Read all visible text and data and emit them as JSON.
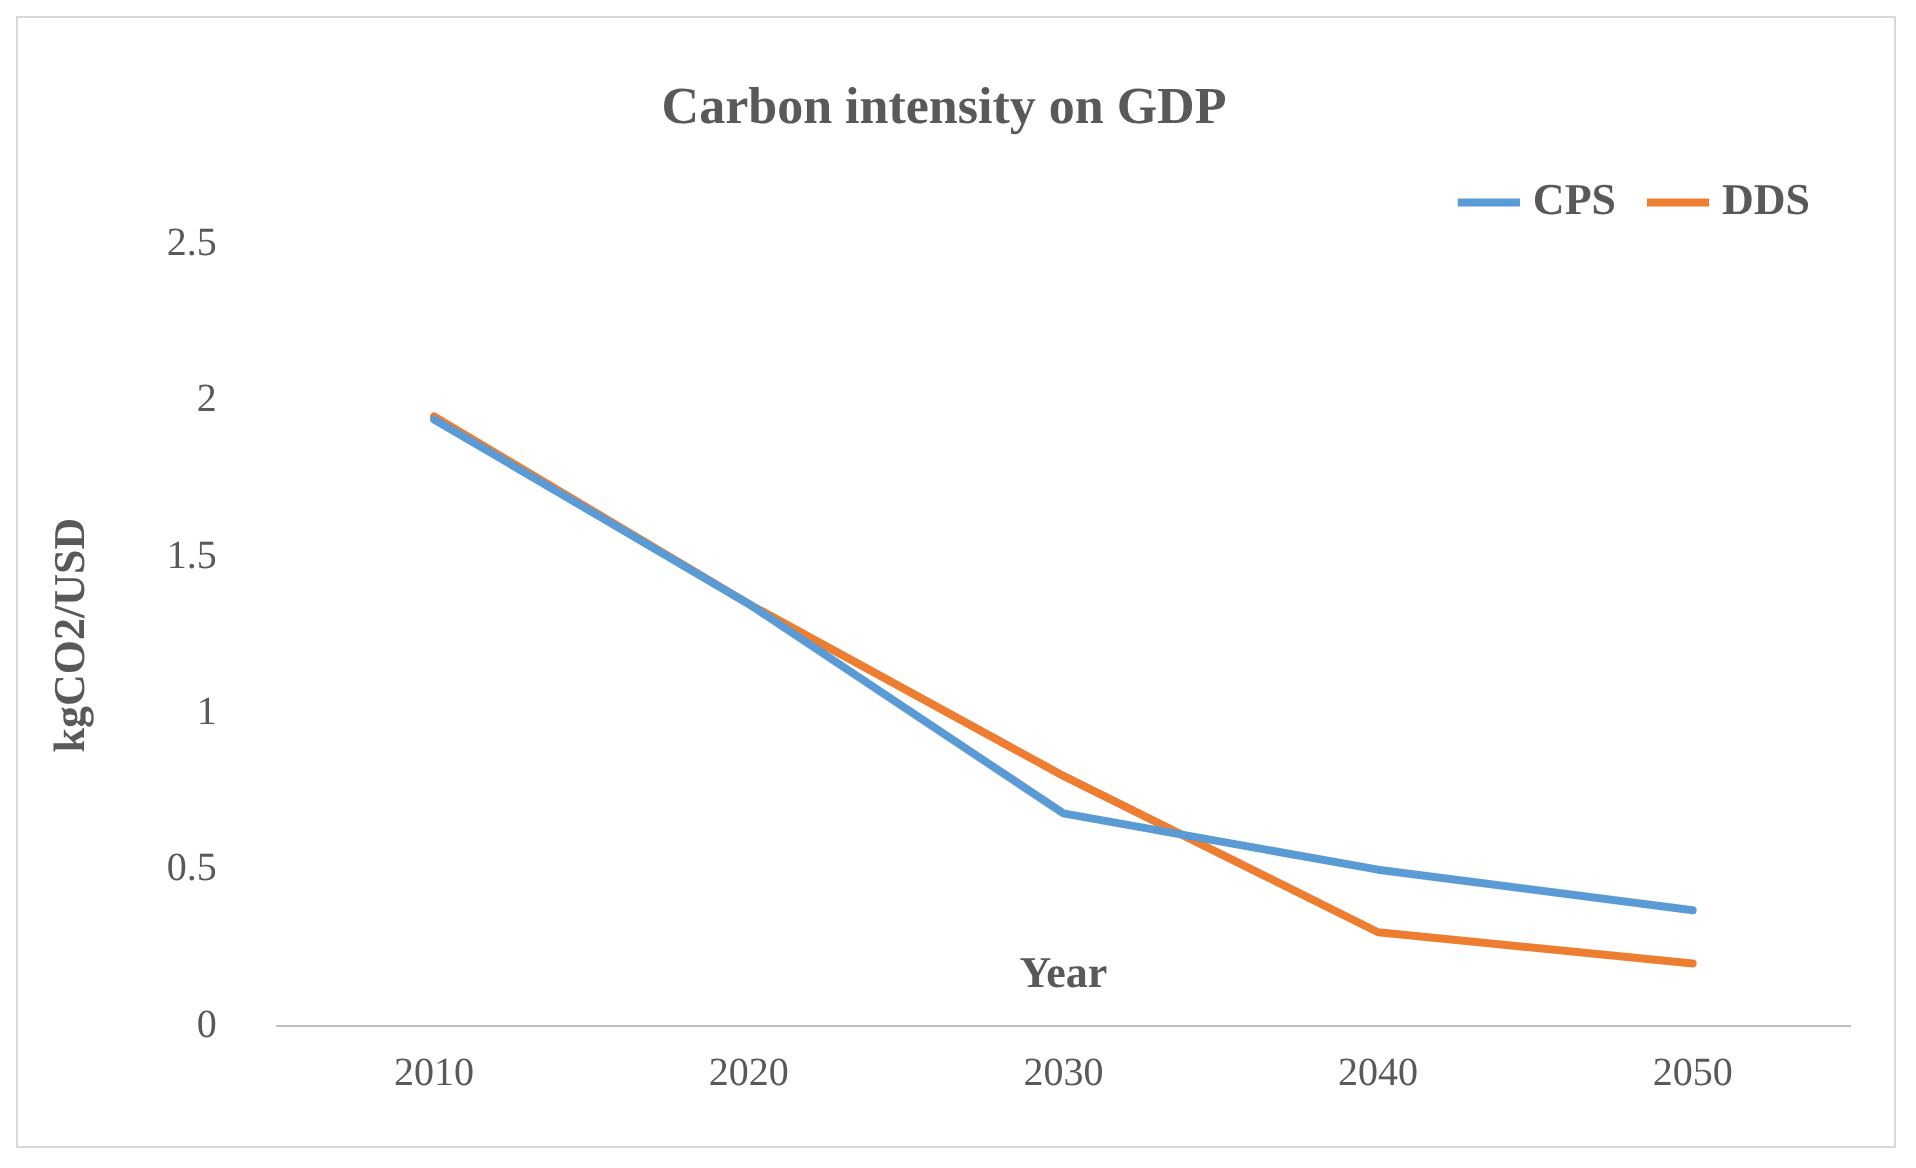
{
  "chart_data": {
    "type": "line",
    "title": "Carbon intensity on GDP",
    "xlabel": "Year",
    "ylabel": "kgCO2/USD",
    "categories": [
      "2010",
      "2020",
      "2030",
      "2040",
      "2050"
    ],
    "series": [
      {
        "name": "CPS",
        "color": "#5b9bd5",
        "values": [
          1.94,
          1.35,
          0.68,
          0.5,
          0.37
        ]
      },
      {
        "name": "DDS",
        "color": "#ed7d31",
        "values": [
          1.95,
          1.35,
          0.8,
          0.3,
          0.2
        ]
      }
    ],
    "ylim": [
      0,
      2.5
    ],
    "yticks": [
      0,
      0.5,
      1,
      1.5,
      2,
      2.5
    ],
    "grid": false,
    "legend": "top right",
    "marker": "none",
    "line_style": "solid"
  }
}
